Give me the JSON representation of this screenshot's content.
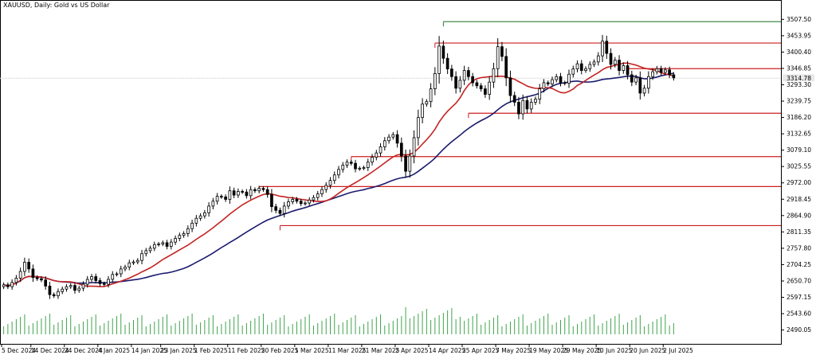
{
  "window": {
    "title": "XAUUSD, Daily:  Gold vs US Dollar"
  },
  "price_label": "3314.78",
  "colors": {
    "background": "#ffffff",
    "frame": "#000000",
    "candle": "#000000",
    "fast_ma": "#c42323",
    "slow_ma": "#1b1b6e",
    "resistance": "#cc1f1f",
    "ath_line": "#2e7d32",
    "volume": "#3fa34d",
    "current_price_line": "#c8c8c8"
  },
  "chart_data": {
    "type": "candlestick",
    "symbol": "XAUUSD",
    "timeframe": "Daily",
    "y_ticks": [
      3507.5,
      3453.95,
      3400.4,
      3346.85,
      3293.3,
      3239.75,
      3186.2,
      3132.65,
      3079.1,
      3025.55,
      2972.0,
      2918.45,
      2864.9,
      2811.35,
      2757.8,
      2704.25,
      2650.7,
      2597.15,
      2543.6,
      2490.05
    ],
    "y_tick_labels": [
      "3507.50",
      "3453.95",
      "3400.40",
      "3346.85",
      "3293.30",
      "3239.75",
      "3186.20",
      "3132.65",
      "3079.10",
      "3025.55",
      "2972.00",
      "2918.45",
      "2864.90",
      "2811.35",
      "2757.80",
      "2704.25",
      "2650.70",
      "2597.15",
      "2543.60",
      "2490.05"
    ],
    "ylim": [
      2476,
      3524
    ],
    "x_labels": [
      "5 Dec 2024",
      "14 Dec 2024",
      "24 Dec 2024",
      "4 Jan 2025",
      "14 Jan 2025",
      "23 Jan 2025",
      "1 Feb 2025",
      "11 Feb 2025",
      "20 Feb 2025",
      "1 Mar 2025",
      "11 Mar 2025",
      "21 Mar 2025",
      "2 Apr 2025",
      "14 Apr 2025",
      "25 Apr 2025",
      "7 May 2025",
      "19 May 2025",
      "29 May 2025",
      "10 Jun 2025",
      "20 Jun 2025",
      "2 Jul 2025"
    ],
    "x_label_bars": [
      0,
      7,
      15,
      23,
      31,
      38,
      46,
      54,
      62,
      70,
      78,
      86,
      94,
      102,
      110,
      118,
      126,
      134,
      142,
      150,
      158
    ],
    "closes": [
      2638,
      2632,
      2646,
      2660,
      2682,
      2712,
      2690,
      2662,
      2658,
      2654,
      2634,
      2606,
      2602,
      2616,
      2624,
      2632,
      2636,
      2620,
      2627,
      2640,
      2656,
      2665,
      2652,
      2642,
      2640,
      2656,
      2672,
      2674,
      2690,
      2696,
      2710,
      2713,
      2718,
      2740,
      2750,
      2758,
      2770,
      2772,
      2776,
      2764,
      2778,
      2790,
      2800,
      2806,
      2822,
      2840,
      2856,
      2864,
      2874,
      2896,
      2912,
      2928,
      2926,
      2918,
      2946,
      2932,
      2944,
      2942,
      2930,
      2950,
      2946,
      2954,
      2950,
      2934,
      2894,
      2882,
      2872,
      2896,
      2910,
      2918,
      2912,
      2904,
      2906,
      2916,
      2924,
      2936,
      2950,
      2964,
      2980,
      2998,
      3016,
      3030,
      3040,
      3036,
      3018,
      3020,
      3022,
      3040,
      3056,
      3070,
      3090,
      3110,
      3122,
      3130,
      3102,
      3060,
      3010,
      3060,
      3120,
      3186,
      3230,
      3238,
      3280,
      3330,
      3420,
      3380,
      3345,
      3320,
      3282,
      3308,
      3340,
      3320,
      3300,
      3290,
      3280,
      3262,
      3302,
      3346,
      3418,
      3386,
      3316,
      3258,
      3236,
      3198,
      3242,
      3214,
      3236,
      3246,
      3280,
      3300,
      3296,
      3310,
      3320,
      3300,
      3298,
      3328,
      3345,
      3362,
      3340,
      3346,
      3360,
      3368,
      3388,
      3436,
      3396,
      3360,
      3374,
      3340,
      3356,
      3326,
      3302,
      3316,
      3266,
      3282,
      3320,
      3336,
      3346,
      3334,
      3342,
      3326,
      3316
    ],
    "fast_ma_period_note": "",
    "resistance_levels": [
      {
        "price": 3500,
        "from_bar": 105
      },
      {
        "price": 3430,
        "from_bar": 103
      },
      {
        "price": 3346,
        "from_bar": 149
      },
      {
        "price": 3200,
        "from_bar": 111
      },
      {
        "price": 3058,
        "from_bar": 83
      },
      {
        "price": 2960,
        "from_bar": 61
      },
      {
        "price": 2832,
        "from_bar": 66
      }
    ],
    "current_price": 3314.78,
    "volume_scale_note": ""
  }
}
